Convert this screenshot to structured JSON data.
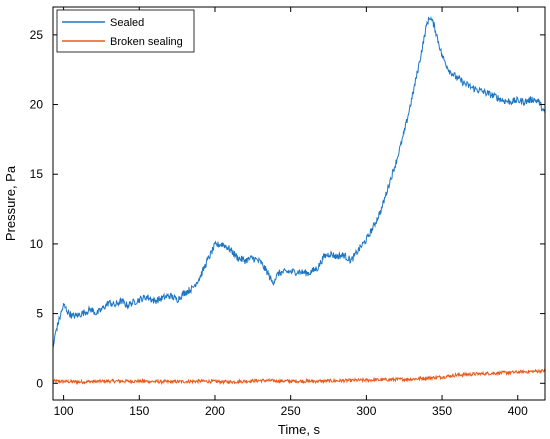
{
  "chart_data": {
    "type": "line",
    "xlabel": "Time, s",
    "ylabel": "Pressure, Pa",
    "xlim": [
      93,
      418
    ],
    "ylim": [
      -1.2,
      27
    ],
    "xticks": [
      100,
      150,
      200,
      250,
      300,
      350,
      400
    ],
    "yticks": [
      0,
      5,
      10,
      15,
      20,
      25
    ],
    "grid": false,
    "legend_position": "top-left",
    "series": [
      {
        "name": "Sealed",
        "color": "#1f77c4",
        "x": [
          93,
          95,
          98,
          100,
          103,
          106,
          110,
          114,
          118,
          122,
          126,
          130,
          134,
          138,
          142,
          146,
          150,
          155,
          160,
          165,
          170,
          175,
          180,
          185,
          190,
          195,
          200,
          205,
          210,
          215,
          220,
          225,
          230,
          235,
          238,
          242,
          248,
          255,
          262,
          268,
          272,
          276,
          280,
          285,
          290,
          295,
          300,
          305,
          310,
          315,
          320,
          325,
          330,
          335,
          340,
          342,
          345,
          350,
          355,
          360,
          365,
          370,
          375,
          380,
          385,
          390,
          395,
          400,
          405,
          410,
          414,
          418
        ],
        "y": [
          2.5,
          3.8,
          4.9,
          5.6,
          5.1,
          4.8,
          4.9,
          5.1,
          5.3,
          5.0,
          5.4,
          5.8,
          5.6,
          5.9,
          5.6,
          5.8,
          6.0,
          6.2,
          5.9,
          6.1,
          6.3,
          6.0,
          6.5,
          6.8,
          7.6,
          8.8,
          9.9,
          10.0,
          9.6,
          9.0,
          8.8,
          9.0,
          8.7,
          7.9,
          7.2,
          7.9,
          8.0,
          8.0,
          7.9,
          8.3,
          9.1,
          9.3,
          9.1,
          9.2,
          8.8,
          9.6,
          10.3,
          11.3,
          12.5,
          14.3,
          16.0,
          18.0,
          20.4,
          23.0,
          25.8,
          26.3,
          25.6,
          23.5,
          22.4,
          21.9,
          21.5,
          21.2,
          21.0,
          20.8,
          20.6,
          20.3,
          20.2,
          20.3,
          20.2,
          20.4,
          20.2,
          19.3
        ]
      },
      {
        "name": "Broken sealing",
        "color": "#ea5a1b",
        "x": [
          93,
          110,
          130,
          150,
          170,
          190,
          210,
          230,
          250,
          270,
          290,
          310,
          330,
          350,
          360,
          370,
          380,
          390,
          400,
          410,
          418
        ],
        "y": [
          0.15,
          0.1,
          0.15,
          0.15,
          0.1,
          0.15,
          0.1,
          0.2,
          0.15,
          0.15,
          0.2,
          0.25,
          0.3,
          0.45,
          0.6,
          0.65,
          0.7,
          0.75,
          0.8,
          0.85,
          0.9
        ]
      }
    ]
  }
}
